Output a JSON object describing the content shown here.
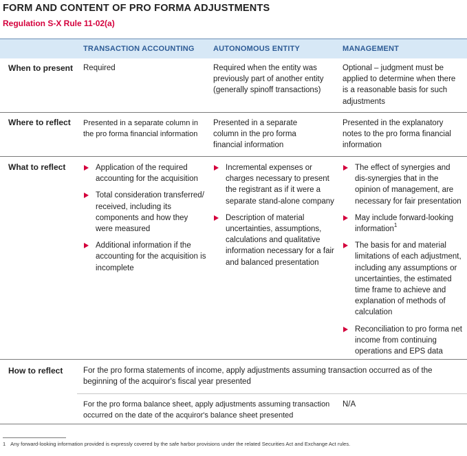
{
  "title": "FORM AND CONTENT OF PRO FORMA ADJUSTMENTS",
  "subtitle": "Regulation S-X Rule 11-02(a)",
  "columns": [
    "TRANSACTION ACCOUNTING",
    "AUTONOMOUS ENTITY",
    "MANAGEMENT"
  ],
  "colors": {
    "accent": "#d4003c",
    "header_bg": "#d7e8f6",
    "header_text": "#2e5c96"
  },
  "rows": {
    "when": {
      "label": "When to present",
      "transaction": "Required",
      "autonomous": "Required when the entity was previously part of another entity (generally spinoff transactions)",
      "management": "Optional – judgment must be applied to determine when there is a reasonable basis for such adjustments"
    },
    "where": {
      "label": "Where to reflect",
      "transaction": "Presented in a separate column in the pro forma financial information",
      "autonomous": "Presented in a separate column in the pro forma financial information",
      "management": "Presented in the explanatory notes to the pro forma financial information"
    },
    "what": {
      "label": "What to reflect",
      "transaction": [
        "Application of the required accounting for the acquisition",
        "Total consideration transferred/ received, including its components and how they were measured",
        "Additional information if the accounting for the acquisition is incomplete"
      ],
      "autonomous": [
        "Incremental expenses or charges necessary to present the registrant as if it were a separate stand-alone company",
        "Description of material uncertainties, assumptions, calculations and qualitative information necessary for a fair and balanced presentation"
      ],
      "management": [
        "The effect of synergies and dis-synergies that in the opinion of management, are necessary for fair presentation",
        "May include forward-looking information",
        "The basis for and material limitations of each adjustment, including any assumptions or uncertainties, the estimated time frame to achieve and explanation of methods of calculation",
        "Reconciliation to pro forma net income from continuing operations and EPS data"
      ],
      "management_footnote_ref": "1"
    },
    "how": {
      "label": "How to reflect",
      "income_statement": "For the pro forma statements of income, apply adjustments assuming transaction occurred as of the beginning of the acquiror's fiscal year presented",
      "balance_sheet": "For the pro forma balance sheet, apply adjustments assuming transaction occurred on the date of the acquiror's balance sheet presented",
      "balance_sheet_management": "N/A"
    }
  },
  "footnote": {
    "number": "1",
    "text": "Any forward-looking information provided is expressly covered by the safe harbor provisions under the related Securities Act and Exchange Act rules."
  }
}
